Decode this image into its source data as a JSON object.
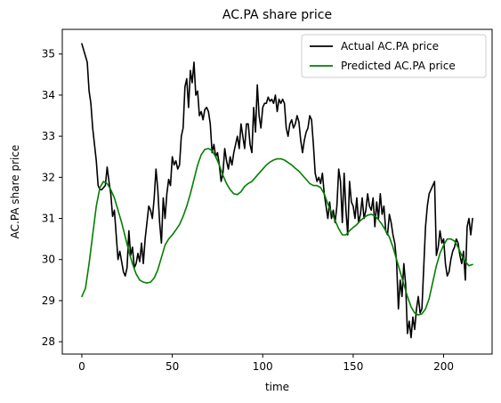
{
  "chart_data": {
    "type": "line",
    "title": "AC.PA share price",
    "xlabel": "time",
    "ylabel": "AC.PA share price",
    "xlim": [
      -10.8,
      226.8
    ],
    "ylim": [
      27.7,
      35.6
    ],
    "xticks": [
      0,
      50,
      100,
      150,
      200
    ],
    "yticks": [
      28,
      29,
      30,
      31,
      32,
      33,
      34,
      35
    ],
    "grid": false,
    "legend_position": "top-right",
    "series": [
      {
        "name": "Actual AC.PA price",
        "color": "#000000",
        "points": [
          [
            0,
            35.25
          ],
          [
            1,
            35.1
          ],
          [
            2,
            34.95
          ],
          [
            3,
            34.8
          ],
          [
            4,
            34.1
          ],
          [
            5,
            33.8
          ],
          [
            6,
            33.2
          ],
          [
            7,
            32.8
          ],
          [
            8,
            32.4
          ],
          [
            9,
            31.8
          ],
          [
            10,
            31.7
          ],
          [
            11,
            31.7
          ],
          [
            12,
            31.75
          ],
          [
            13,
            31.8
          ],
          [
            14,
            32.25
          ],
          [
            15,
            31.9
          ],
          [
            16,
            31.6
          ],
          [
            17,
            31.05
          ],
          [
            18,
            31.2
          ],
          [
            19,
            30.6
          ],
          [
            20,
            30.0
          ],
          [
            21,
            30.2
          ],
          [
            22,
            29.95
          ],
          [
            23,
            29.7
          ],
          [
            24,
            29.6
          ],
          [
            25,
            29.8
          ],
          [
            26,
            30.7
          ],
          [
            27,
            30.1
          ],
          [
            28,
            30.3
          ],
          [
            29,
            29.8
          ],
          [
            30,
            29.9
          ],
          [
            31,
            30.15
          ],
          [
            32,
            29.95
          ],
          [
            33,
            30.4
          ],
          [
            34,
            29.9
          ],
          [
            35,
            30.5
          ],
          [
            36,
            30.9
          ],
          [
            37,
            31.3
          ],
          [
            38,
            31.2
          ],
          [
            39,
            31.0
          ],
          [
            40,
            31.5
          ],
          [
            41,
            32.2
          ],
          [
            42,
            31.7
          ],
          [
            43,
            30.9
          ],
          [
            44,
            30.4
          ],
          [
            45,
            31.5
          ],
          [
            46,
            31.0
          ],
          [
            47,
            31.6
          ],
          [
            48,
            31.95
          ],
          [
            49,
            31.8
          ],
          [
            50,
            32.5
          ],
          [
            51,
            32.3
          ],
          [
            52,
            32.4
          ],
          [
            53,
            32.2
          ],
          [
            54,
            32.3
          ],
          [
            55,
            33.0
          ],
          [
            56,
            33.2
          ],
          [
            57,
            34.2
          ],
          [
            58,
            34.4
          ],
          [
            59,
            33.7
          ],
          [
            60,
            34.6
          ],
          [
            61,
            34.3
          ],
          [
            62,
            34.8
          ],
          [
            63,
            34.0
          ],
          [
            64,
            34.1
          ],
          [
            65,
            33.5
          ],
          [
            66,
            33.6
          ],
          [
            67,
            33.4
          ],
          [
            68,
            33.65
          ],
          [
            69,
            33.7
          ],
          [
            70,
            33.6
          ],
          [
            71,
            33.3
          ],
          [
            72,
            32.6
          ],
          [
            73,
            32.8
          ],
          [
            74,
            32.5
          ],
          [
            75,
            32.6
          ],
          [
            76,
            32.3
          ],
          [
            77,
            31.9
          ],
          [
            78,
            32.1
          ],
          [
            79,
            32.7
          ],
          [
            80,
            32.4
          ],
          [
            81,
            32.2
          ],
          [
            82,
            32.5
          ],
          [
            83,
            32.3
          ],
          [
            84,
            32.6
          ],
          [
            85,
            32.8
          ],
          [
            86,
            33.0
          ],
          [
            87,
            32.7
          ],
          [
            88,
            33.3
          ],
          [
            89,
            33.0
          ],
          [
            90,
            32.7
          ],
          [
            91,
            33.3
          ],
          [
            92,
            33.3
          ],
          [
            93,
            32.8
          ],
          [
            94,
            32.6
          ],
          [
            95,
            33.7
          ],
          [
            96,
            33.1
          ],
          [
            97,
            34.25
          ],
          [
            98,
            33.5
          ],
          [
            99,
            33.2
          ],
          [
            100,
            33.7
          ],
          [
            101,
            33.8
          ],
          [
            102,
            33.8
          ],
          [
            103,
            33.95
          ],
          [
            104,
            33.85
          ],
          [
            105,
            33.9
          ],
          [
            106,
            33.8
          ],
          [
            107,
            34.0
          ],
          [
            108,
            33.6
          ],
          [
            109,
            33.9
          ],
          [
            110,
            33.8
          ],
          [
            111,
            33.9
          ],
          [
            112,
            33.8
          ],
          [
            113,
            33.2
          ],
          [
            114,
            33.0
          ],
          [
            115,
            33.3
          ],
          [
            116,
            33.4
          ],
          [
            117,
            33.2
          ],
          [
            118,
            33.3
          ],
          [
            119,
            33.5
          ],
          [
            120,
            33.35
          ],
          [
            121,
            32.9
          ],
          [
            122,
            32.6
          ],
          [
            123,
            32.9
          ],
          [
            124,
            33.1
          ],
          [
            125,
            33.2
          ],
          [
            126,
            33.5
          ],
          [
            127,
            33.4
          ],
          [
            128,
            32.8
          ],
          [
            129,
            32.1
          ],
          [
            130,
            31.9
          ],
          [
            131,
            32.0
          ],
          [
            132,
            31.85
          ],
          [
            133,
            32.1
          ],
          [
            134,
            31.6
          ],
          [
            135,
            31.3
          ],
          [
            136,
            31.0
          ],
          [
            137,
            31.4
          ],
          [
            138,
            31.0
          ],
          [
            139,
            31.2
          ],
          [
            140,
            30.9
          ],
          [
            141,
            31.3
          ],
          [
            142,
            32.2
          ],
          [
            143,
            31.9
          ],
          [
            144,
            30.9
          ],
          [
            145,
            32.1
          ],
          [
            146,
            31.2
          ],
          [
            147,
            30.6
          ],
          [
            148,
            31.9
          ],
          [
            149,
            31.4
          ],
          [
            150,
            31.3
          ],
          [
            151,
            31.0
          ],
          [
            152,
            31.5
          ],
          [
            153,
            30.9
          ],
          [
            154,
            31.1
          ],
          [
            155,
            31.5
          ],
          [
            156,
            31.0
          ],
          [
            157,
            31.2
          ],
          [
            158,
            31.6
          ],
          [
            159,
            31.3
          ],
          [
            160,
            31.2
          ],
          [
            161,
            31.5
          ],
          [
            162,
            30.8
          ],
          [
            163,
            31.4
          ],
          [
            164,
            31.0
          ],
          [
            165,
            31.6
          ],
          [
            166,
            31.1
          ],
          [
            167,
            31.3
          ],
          [
            168,
            30.7
          ],
          [
            169,
            30.6
          ],
          [
            170,
            31.1
          ],
          [
            171,
            30.9
          ],
          [
            172,
            30.6
          ],
          [
            173,
            30.4
          ],
          [
            174,
            29.95
          ],
          [
            175,
            28.8
          ],
          [
            176,
            29.5
          ],
          [
            177,
            29.1
          ],
          [
            178,
            29.9
          ],
          [
            179,
            29.4
          ],
          [
            180,
            28.2
          ],
          [
            181,
            28.5
          ],
          [
            182,
            28.1
          ],
          [
            183,
            28.6
          ],
          [
            184,
            28.3
          ],
          [
            185,
            28.8
          ],
          [
            186,
            29.1
          ],
          [
            187,
            28.7
          ],
          [
            188,
            28.8
          ],
          [
            189,
            29.8
          ],
          [
            190,
            30.8
          ],
          [
            191,
            31.3
          ],
          [
            192,
            31.6
          ],
          [
            193,
            31.7
          ],
          [
            194,
            31.8
          ],
          [
            195,
            31.9
          ],
          [
            196,
            30.1
          ],
          [
            197,
            30.3
          ],
          [
            198,
            30.7
          ],
          [
            199,
            30.4
          ],
          [
            200,
            30.5
          ],
          [
            201,
            29.9
          ],
          [
            202,
            29.6
          ],
          [
            203,
            29.7
          ],
          [
            204,
            30.0
          ],
          [
            205,
            30.2
          ],
          [
            206,
            30.3
          ],
          [
            207,
            30.5
          ],
          [
            208,
            30.4
          ],
          [
            209,
            30.1
          ],
          [
            210,
            29.9
          ],
          [
            211,
            30.2
          ],
          [
            212,
            29.5
          ],
          [
            213,
            30.8
          ],
          [
            214,
            31.0
          ],
          [
            215,
            30.6
          ],
          [
            216,
            31.0
          ]
        ]
      },
      {
        "name": "Predicted AC.PA price",
        "color": "#008000",
        "points": [
          [
            0,
            29.1
          ],
          [
            2,
            29.3
          ],
          [
            4,
            29.9
          ],
          [
            6,
            30.6
          ],
          [
            8,
            31.3
          ],
          [
            10,
            31.75
          ],
          [
            12,
            31.9
          ],
          [
            14,
            31.85
          ],
          [
            16,
            31.7
          ],
          [
            18,
            31.5
          ],
          [
            20,
            31.2
          ],
          [
            22,
            30.9
          ],
          [
            24,
            30.55
          ],
          [
            26,
            30.2
          ],
          [
            28,
            29.9
          ],
          [
            30,
            29.65
          ],
          [
            32,
            29.5
          ],
          [
            34,
            29.45
          ],
          [
            36,
            29.43
          ],
          [
            38,
            29.45
          ],
          [
            40,
            29.55
          ],
          [
            42,
            29.75
          ],
          [
            44,
            30.05
          ],
          [
            46,
            30.35
          ],
          [
            48,
            30.5
          ],
          [
            50,
            30.6
          ],
          [
            52,
            30.72
          ],
          [
            54,
            30.85
          ],
          [
            56,
            31.05
          ],
          [
            58,
            31.3
          ],
          [
            60,
            31.6
          ],
          [
            62,
            31.95
          ],
          [
            64,
            32.3
          ],
          [
            66,
            32.55
          ],
          [
            68,
            32.68
          ],
          [
            70,
            32.7
          ],
          [
            72,
            32.65
          ],
          [
            74,
            32.5
          ],
          [
            76,
            32.3
          ],
          [
            78,
            32.05
          ],
          [
            80,
            31.85
          ],
          [
            82,
            31.7
          ],
          [
            84,
            31.6
          ],
          [
            86,
            31.58
          ],
          [
            88,
            31.65
          ],
          [
            90,
            31.78
          ],
          [
            92,
            31.85
          ],
          [
            94,
            31.9
          ],
          [
            96,
            32.0
          ],
          [
            98,
            32.1
          ],
          [
            100,
            32.2
          ],
          [
            102,
            32.3
          ],
          [
            104,
            32.37
          ],
          [
            106,
            32.42
          ],
          [
            108,
            32.45
          ],
          [
            110,
            32.45
          ],
          [
            112,
            32.42
          ],
          [
            114,
            32.36
          ],
          [
            116,
            32.3
          ],
          [
            118,
            32.22
          ],
          [
            120,
            32.15
          ],
          [
            122,
            32.05
          ],
          [
            124,
            31.95
          ],
          [
            126,
            31.85
          ],
          [
            128,
            31.8
          ],
          [
            130,
            31.8
          ],
          [
            132,
            31.75
          ],
          [
            134,
            31.6
          ],
          [
            136,
            31.35
          ],
          [
            138,
            31.15
          ],
          [
            140,
            30.95
          ],
          [
            142,
            30.75
          ],
          [
            144,
            30.6
          ],
          [
            146,
            30.6
          ],
          [
            148,
            30.7
          ],
          [
            150,
            30.78
          ],
          [
            152,
            30.85
          ],
          [
            154,
            30.95
          ],
          [
            156,
            31.02
          ],
          [
            158,
            31.08
          ],
          [
            160,
            31.1
          ],
          [
            162,
            31.06
          ],
          [
            164,
            30.97
          ],
          [
            166,
            30.85
          ],
          [
            168,
            30.7
          ],
          [
            170,
            30.55
          ],
          [
            172,
            30.3
          ],
          [
            174,
            30.0
          ],
          [
            176,
            29.7
          ],
          [
            178,
            29.4
          ],
          [
            180,
            29.1
          ],
          [
            182,
            28.85
          ],
          [
            184,
            28.7
          ],
          [
            186,
            28.65
          ],
          [
            188,
            28.68
          ],
          [
            190,
            28.8
          ],
          [
            192,
            29.05
          ],
          [
            194,
            29.45
          ],
          [
            196,
            29.85
          ],
          [
            198,
            30.15
          ],
          [
            200,
            30.35
          ],
          [
            202,
            30.5
          ],
          [
            204,
            30.5
          ],
          [
            206,
            30.45
          ],
          [
            208,
            30.3
          ],
          [
            210,
            30.1
          ],
          [
            212,
            29.95
          ],
          [
            214,
            29.85
          ],
          [
            216,
            29.88
          ]
        ]
      }
    ]
  }
}
